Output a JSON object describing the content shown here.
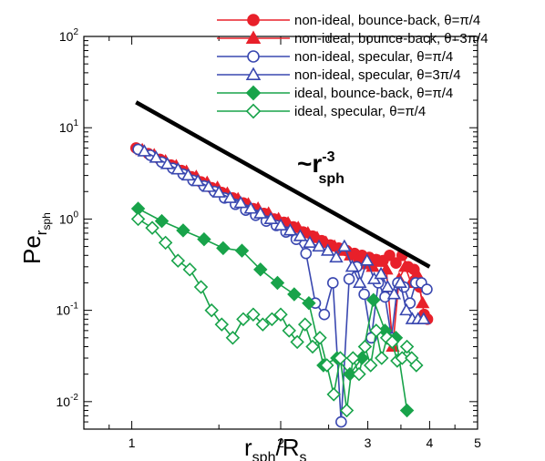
{
  "chart_data": {
    "type": "scatter",
    "x_scale": "log",
    "y_scale": "log",
    "xlim": [
      0.8,
      5
    ],
    "ylim": [
      0.005,
      100
    ],
    "grid": false,
    "legend_position": "top-right",
    "x_tick_labels": [
      {
        "value": 1,
        "label": "1"
      },
      {
        "value": 2,
        "label": "2"
      },
      {
        "value": 3,
        "label": "3"
      },
      {
        "value": 4,
        "label": "4"
      },
      {
        "value": 5,
        "label": "5"
      }
    ],
    "y_tick_labels": [
      {
        "value": 0.01,
        "base": "10",
        "exp": "-2"
      },
      {
        "value": 0.1,
        "base": "10",
        "exp": "-1"
      },
      {
        "value": 1,
        "base": "10",
        "exp": "0"
      },
      {
        "value": 10,
        "base": "10",
        "exp": "1"
      },
      {
        "value": 100,
        "base": "10",
        "exp": "2"
      }
    ],
    "xlabel": {
      "main": "r",
      "sub": "sph",
      "rest": "/R",
      "sub2": "s"
    },
    "ylabel": {
      "main": "Pe",
      "sub": "r",
      "subsub": "sph"
    },
    "annotation": {
      "prefix": "~r",
      "sub": "sph",
      "sup": "-3"
    },
    "reference_line": {
      "x": [
        1.02,
        4.0
      ],
      "y": [
        19,
        0.3
      ],
      "color": "#000000"
    },
    "series": [
      {
        "name": "non-ideal, bounce-back, θ=π/4",
        "color": "#e8202a",
        "marker": "circle",
        "filled": true,
        "x": [
          1.02,
          1.08,
          1.14,
          1.2,
          1.26,
          1.32,
          1.38,
          1.45,
          1.52,
          1.6,
          1.68,
          1.76,
          1.85,
          1.94,
          2.03,
          2.12,
          2.22,
          2.32,
          2.42,
          2.52,
          2.62,
          2.72,
          2.82,
          2.92,
          3.02,
          3.12,
          3.22,
          3.32,
          3.42,
          3.52,
          3.62,
          3.72,
          3.82,
          3.9,
          3.96
        ],
        "y": [
          6.0,
          5.2,
          4.5,
          3.9,
          3.4,
          2.9,
          2.55,
          2.2,
          1.95,
          1.7,
          1.5,
          1.3,
          1.15,
          1.0,
          0.92,
          0.82,
          0.72,
          0.65,
          0.58,
          0.52,
          0.48,
          0.45,
          0.42,
          0.4,
          0.38,
          0.36,
          0.35,
          0.4,
          0.33,
          0.4,
          0.3,
          0.28,
          0.18,
          0.09,
          0.08
        ]
      },
      {
        "name": "non-ideal, bounce-back, θ=3π/4",
        "color": "#e8202a",
        "marker": "triangle",
        "filled": true,
        "x": [
          1.05,
          1.11,
          1.17,
          1.23,
          1.29,
          1.35,
          1.42,
          1.49,
          1.56,
          1.64,
          1.72,
          1.8,
          1.89,
          1.98,
          2.07,
          2.17,
          2.27,
          2.37,
          2.47,
          2.57,
          2.67,
          2.77,
          2.87,
          2.97,
          3.07,
          3.17,
          3.27,
          3.37,
          3.47,
          3.57,
          3.67,
          3.77,
          3.87
        ],
        "y": [
          5.7,
          5.0,
          4.3,
          3.8,
          3.3,
          2.9,
          2.5,
          2.2,
          1.9,
          1.65,
          1.45,
          1.3,
          1.15,
          1.0,
          0.9,
          0.8,
          0.7,
          0.62,
          0.55,
          0.5,
          0.45,
          0.4,
          0.36,
          0.32,
          0.3,
          0.34,
          0.28,
          0.04,
          0.22,
          0.3,
          0.2,
          0.25,
          0.12
        ]
      },
      {
        "name": "non-ideal, specular, θ=π/4",
        "color": "#3a48b0",
        "marker": "circle",
        "filled": false,
        "x": [
          1.03,
          1.09,
          1.15,
          1.21,
          1.27,
          1.33,
          1.4,
          1.47,
          1.54,
          1.62,
          1.7,
          1.78,
          1.87,
          1.96,
          2.05,
          2.15,
          2.25,
          2.35,
          2.45,
          2.55,
          2.65,
          2.75,
          2.85,
          2.95,
          3.05,
          3.15,
          3.25,
          3.35,
          3.45,
          3.55,
          3.65,
          3.75,
          3.85,
          3.95
        ],
        "y": [
          5.8,
          5.0,
          4.2,
          3.6,
          3.1,
          2.65,
          2.3,
          2.0,
          1.7,
          1.45,
          1.25,
          1.1,
          0.95,
          0.85,
          0.72,
          0.6,
          0.42,
          0.12,
          0.09,
          0.2,
          0.006,
          0.22,
          0.3,
          0.15,
          0.05,
          0.2,
          0.14,
          0.05,
          0.2,
          0.18,
          0.12,
          0.2,
          0.2,
          0.17
        ]
      },
      {
        "name": "non-ideal, specular, θ=3π/4",
        "color": "#3a48b0",
        "marker": "triangle",
        "filled": false,
        "x": [
          1.06,
          1.12,
          1.18,
          1.24,
          1.3,
          1.36,
          1.43,
          1.5,
          1.58,
          1.66,
          1.74,
          1.82,
          1.91,
          2.0,
          2.09,
          2.19,
          2.29,
          2.39,
          2.49,
          2.59,
          2.69,
          2.79,
          2.89,
          2.99,
          3.09,
          3.19,
          3.29,
          3.39,
          3.49,
          3.59,
          3.69,
          3.79,
          3.89
        ],
        "y": [
          5.5,
          4.7,
          4.0,
          3.5,
          3.0,
          2.6,
          2.25,
          1.95,
          1.7,
          1.5,
          1.3,
          1.15,
          1.0,
          0.85,
          0.75,
          0.65,
          0.55,
          0.5,
          0.45,
          0.38,
          0.5,
          0.3,
          0.2,
          0.35,
          0.22,
          0.25,
          0.18,
          0.15,
          0.2,
          0.1,
          0.08,
          0.08,
          0.08
        ]
      },
      {
        "name": "ideal, bounce-back, θ=π/4",
        "color": "#18a34a",
        "marker": "diamond",
        "filled": true,
        "x": [
          1.03,
          1.15,
          1.27,
          1.4,
          1.53,
          1.67,
          1.82,
          1.97,
          2.13,
          2.28,
          2.44,
          2.6,
          2.76,
          2.92,
          3.08,
          3.25,
          3.42,
          3.6
        ],
        "y": [
          1.3,
          0.95,
          0.75,
          0.6,
          0.48,
          0.45,
          0.28,
          0.2,
          0.15,
          0.12,
          0.025,
          0.03,
          0.02,
          0.03,
          0.13,
          0.06,
          0.05,
          0.008
        ]
      },
      {
        "name": "ideal, specular, θ=π/4",
        "color": "#18a34a",
        "marker": "diamond",
        "filled": false,
        "x": [
          1.03,
          1.1,
          1.17,
          1.24,
          1.31,
          1.38,
          1.45,
          1.52,
          1.6,
          1.68,
          1.76,
          1.84,
          1.92,
          2.0,
          2.08,
          2.16,
          2.24,
          2.32,
          2.4,
          2.48,
          2.56,
          2.64,
          2.72,
          2.8,
          2.88,
          2.96,
          3.04,
          3.12,
          3.2,
          3.28,
          3.36,
          3.44,
          3.52,
          3.6,
          3.68,
          3.76
        ],
        "y": [
          1.0,
          0.8,
          0.55,
          0.35,
          0.28,
          0.18,
          0.1,
          0.07,
          0.05,
          0.08,
          0.09,
          0.07,
          0.08,
          0.09,
          0.06,
          0.045,
          0.07,
          0.04,
          0.05,
          0.025,
          0.012,
          0.03,
          0.008,
          0.03,
          0.02,
          0.04,
          0.025,
          0.06,
          0.03,
          0.05,
          0.045,
          0.028,
          0.03,
          0.04,
          0.03,
          0.025
        ]
      }
    ]
  }
}
